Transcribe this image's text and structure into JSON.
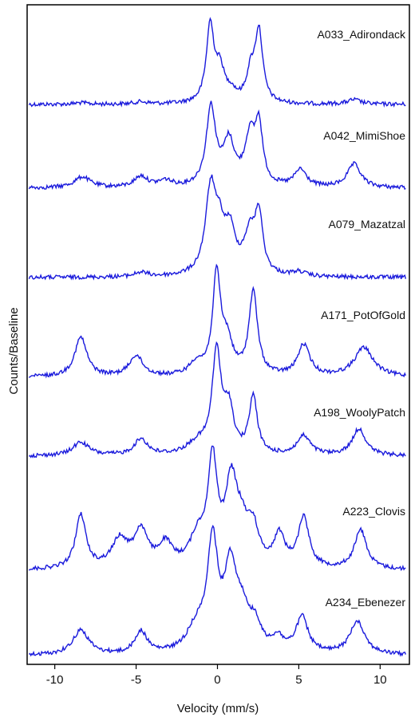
{
  "chart_data": {
    "type": "line",
    "xlabel": "Velocity (mm/s)",
    "ylabel": "Counts/Baseline",
    "xlim": [
      -11.7,
      11.8
    ],
    "xticks": [
      -10,
      -5,
      0,
      5,
      10
    ],
    "x_tick_labels": [
      "-10",
      "-5",
      "0",
      "5",
      "10"
    ],
    "yticks_shown": false,
    "grid": false,
    "line_color": "#1a1adc",
    "series": [
      {
        "name": "A033_Adirondack",
        "peaks": [
          {
            "x": -0.45,
            "h": 1.0,
            "w": 0.28
          },
          {
            "x": 0.15,
            "h": 0.42,
            "w": 0.35
          },
          {
            "x": 0.85,
            "h": 0.12,
            "w": 0.35
          },
          {
            "x": 2.05,
            "h": 0.38,
            "w": 0.32
          },
          {
            "x": 2.55,
            "h": 0.92,
            "w": 0.28
          },
          {
            "x": 8.4,
            "h": 0.06,
            "w": 0.5
          },
          {
            "x": -8.4,
            "h": 0.02,
            "w": 0.5
          },
          {
            "x": -4.7,
            "h": 0.03,
            "w": 0.5
          }
        ]
      },
      {
        "name": "A042_MimiShoe",
        "peaks": [
          {
            "x": -0.4,
            "h": 1.0,
            "w": 0.35
          },
          {
            "x": 0.7,
            "h": 0.55,
            "w": 0.42
          },
          {
            "x": 2.0,
            "h": 0.6,
            "w": 0.38
          },
          {
            "x": 2.55,
            "h": 0.72,
            "w": 0.28
          },
          {
            "x": -8.3,
            "h": 0.14,
            "w": 0.6
          },
          {
            "x": -4.7,
            "h": 0.14,
            "w": 0.5
          },
          {
            "x": -3.2,
            "h": 0.08,
            "w": 0.5
          },
          {
            "x": 5.1,
            "h": 0.22,
            "w": 0.45
          },
          {
            "x": 8.4,
            "h": 0.3,
            "w": 0.5
          }
        ]
      },
      {
        "name": "A079_Mazatzal",
        "peaks": [
          {
            "x": -0.4,
            "h": 1.0,
            "w": 0.4
          },
          {
            "x": 0.15,
            "h": 0.35,
            "w": 0.3
          },
          {
            "x": 0.75,
            "h": 0.48,
            "w": 0.4
          },
          {
            "x": 2.0,
            "h": 0.45,
            "w": 0.45
          },
          {
            "x": 2.55,
            "h": 0.62,
            "w": 0.28
          },
          {
            "x": 5.0,
            "h": 0.05,
            "w": 0.5
          },
          {
            "x": -4.7,
            "h": 0.05,
            "w": 0.5
          }
        ]
      },
      {
        "name": "A171_PotOfGold",
        "peaks": [
          {
            "x": -0.05,
            "h": 0.95,
            "w": 0.3
          },
          {
            "x": 0.6,
            "h": 0.3,
            "w": 0.4
          },
          {
            "x": 2.2,
            "h": 0.8,
            "w": 0.32
          },
          {
            "x": -8.4,
            "h": 0.38,
            "w": 0.45
          },
          {
            "x": -5.0,
            "h": 0.2,
            "w": 0.5
          },
          {
            "x": -1.3,
            "h": 0.12,
            "w": 0.5
          },
          {
            "x": 5.3,
            "h": 0.3,
            "w": 0.45
          },
          {
            "x": 9.0,
            "h": 0.28,
            "w": 0.7
          }
        ]
      },
      {
        "name": "A198_WoolyPatch",
        "peaks": [
          {
            "x": -0.05,
            "h": 1.05,
            "w": 0.33
          },
          {
            "x": 0.7,
            "h": 0.45,
            "w": 0.35
          },
          {
            "x": 2.2,
            "h": 0.6,
            "w": 0.3
          },
          {
            "x": -8.4,
            "h": 0.14,
            "w": 0.6
          },
          {
            "x": -4.7,
            "h": 0.17,
            "w": 0.5
          },
          {
            "x": -1.2,
            "h": 0.12,
            "w": 0.8
          },
          {
            "x": 5.3,
            "h": 0.2,
            "w": 0.5
          },
          {
            "x": 8.7,
            "h": 0.28,
            "w": 0.5
          }
        ]
      },
      {
        "name": "A223_Clovis",
        "peaks": [
          {
            "x": -0.3,
            "h": 0.9,
            "w": 0.35
          },
          {
            "x": 0.85,
            "h": 0.7,
            "w": 0.45
          },
          {
            "x": 1.5,
            "h": 0.28,
            "w": 0.5
          },
          {
            "x": 2.2,
            "h": 0.3,
            "w": 0.4
          },
          {
            "x": -8.4,
            "h": 0.48,
            "w": 0.38
          },
          {
            "x": -6.0,
            "h": 0.25,
            "w": 0.6
          },
          {
            "x": -4.7,
            "h": 0.32,
            "w": 0.5
          },
          {
            "x": -3.2,
            "h": 0.2,
            "w": 0.5
          },
          {
            "x": -1.2,
            "h": 0.25,
            "w": 0.6
          },
          {
            "x": 3.8,
            "h": 0.28,
            "w": 0.4
          },
          {
            "x": 5.3,
            "h": 0.45,
            "w": 0.4
          },
          {
            "x": 8.8,
            "h": 0.35,
            "w": 0.45
          }
        ]
      },
      {
        "name": "A234_Ebenezer",
        "peaks": [
          {
            "x": -0.3,
            "h": 0.95,
            "w": 0.4
          },
          {
            "x": 0.8,
            "h": 0.7,
            "w": 0.45
          },
          {
            "x": 1.5,
            "h": 0.3,
            "w": 0.5
          },
          {
            "x": 2.3,
            "h": 0.22,
            "w": 0.45
          },
          {
            "x": -8.4,
            "h": 0.22,
            "w": 0.6
          },
          {
            "x": -4.7,
            "h": 0.2,
            "w": 0.45
          },
          {
            "x": -1.3,
            "h": 0.2,
            "w": 0.7
          },
          {
            "x": 3.7,
            "h": 0.12,
            "w": 0.45
          },
          {
            "x": 5.2,
            "h": 0.32,
            "w": 0.45
          },
          {
            "x": 8.6,
            "h": 0.3,
            "w": 0.55
          }
        ]
      }
    ]
  }
}
